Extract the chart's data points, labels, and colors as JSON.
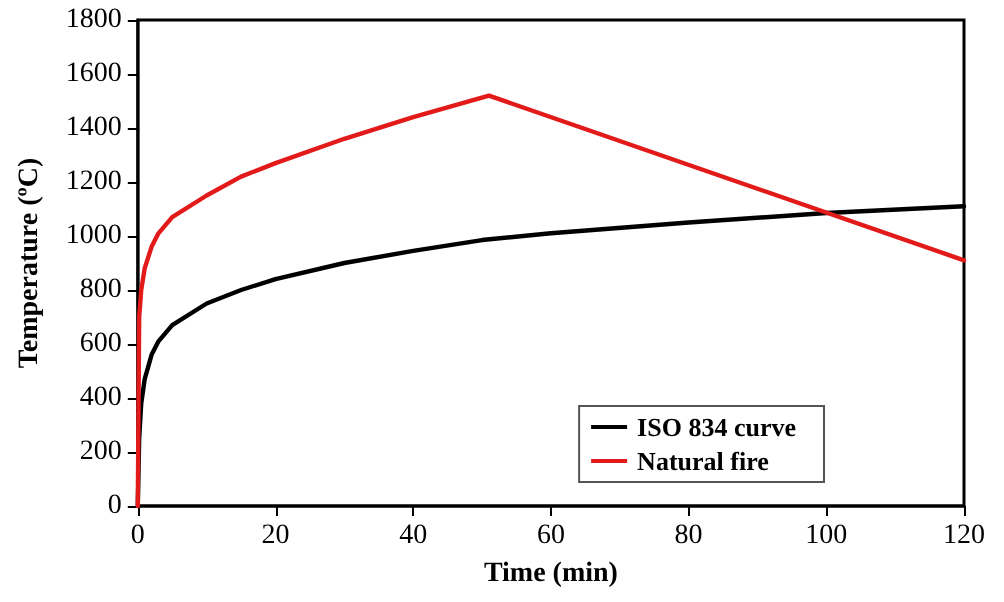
{
  "chart_data": {
    "type": "line",
    "xlabel": "Time (min)",
    "ylabel": "Temperature (ºC)",
    "xlim": [
      0,
      120
    ],
    "xticks": [
      0,
      20,
      40,
      60,
      80,
      100,
      120
    ],
    "ylim": [
      0,
      1800
    ],
    "yticks": [
      0,
      200,
      400,
      600,
      800,
      1000,
      1200,
      1400,
      1600,
      1800
    ],
    "grid": false,
    "legend": "bottom right",
    "marker": "none",
    "line_style": "solid",
    "series": [
      {
        "name": "ISO 834 curve",
        "color": "#000000",
        "x": [
          0,
          0.2,
          0.5,
          1,
          2,
          3,
          5,
          10,
          15,
          20,
          30,
          40,
          50,
          60,
          80,
          100,
          120
        ],
        "values": [
          0,
          250,
          380,
          470,
          560,
          610,
          670,
          750,
          800,
          840,
          900,
          945,
          985,
          1010,
          1050,
          1085,
          1110
        ]
      },
      {
        "name": "Natural fire",
        "color": "#e21a1a",
        "x": [
          0,
          0.2,
          0.5,
          1,
          2,
          3,
          5,
          10,
          15,
          20,
          30,
          40,
          51,
          120
        ],
        "values": [
          0,
          700,
          800,
          880,
          960,
          1010,
          1070,
          1150,
          1220,
          1270,
          1360,
          1440,
          1520,
          910
        ]
      }
    ]
  }
}
